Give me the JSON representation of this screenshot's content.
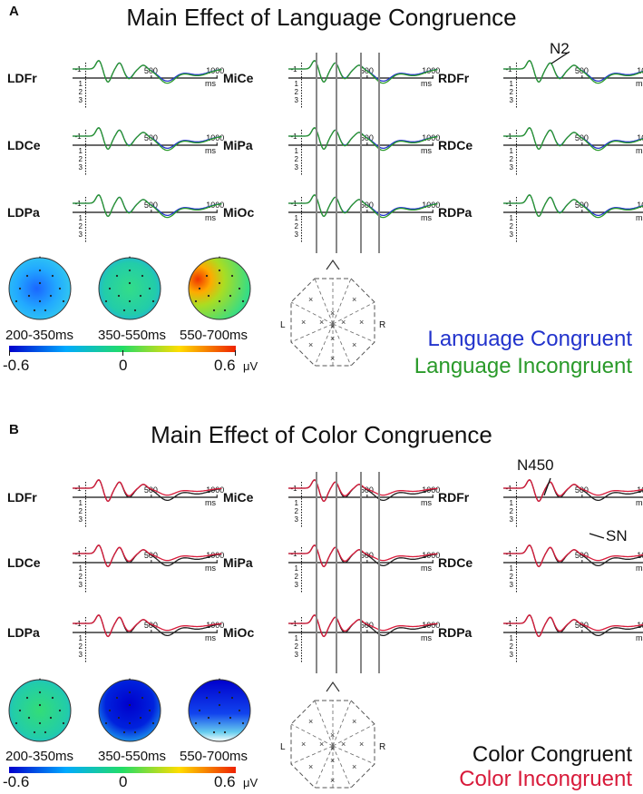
{
  "panels": [
    {
      "letter": "A",
      "title": "Main Effect of Language Congruence",
      "annotation_n2": "N2",
      "electrodes": {
        "left": [
          "LDFr",
          "LDCe",
          "LDPa"
        ],
        "mid": [
          "MiCe",
          "MiPa",
          "MiOc"
        ],
        "right": [
          "RDFr",
          "RDCe",
          "RDPa"
        ]
      },
      "series": [
        {
          "name": "Language Congruent",
          "color": "#2233cc"
        },
        {
          "name": "Language Incongruent",
          "color": "#2a9a2a"
        }
      ],
      "topo_windows": [
        "200-350ms",
        "350-550ms",
        "550-700ms"
      ]
    },
    {
      "letter": "B",
      "title": "Main Effect of Color Congruence",
      "annotation_n450": "N450",
      "annotation_sn": "SN",
      "electrodes": {
        "left": [
          "LDFr",
          "LDCe",
          "LDPa"
        ],
        "mid": [
          "MiCe",
          "MiPa",
          "MiOc"
        ],
        "right": [
          "RDFr",
          "RDCe",
          "RDPa"
        ]
      },
      "series": [
        {
          "name": "Color Congruent",
          "color": "#222222"
        },
        {
          "name": "Color Incongruent",
          "color": "#d81a3a"
        }
      ],
      "topo_windows": [
        "200-350ms",
        "350-550ms",
        "550-700ms"
      ]
    }
  ],
  "axis": {
    "xticks": [
      "500",
      "1000"
    ],
    "xunit": "ms",
    "yticks_neg": "-1",
    "yticks_pos": [
      "1",
      "2",
      "3"
    ],
    "yunit": "μV"
  },
  "colorbar": {
    "min": "-0.6",
    "mid": "0",
    "max": "0.6",
    "unit": "μV",
    "colors": [
      "#0000cc",
      "#00aaff",
      "#22dd66",
      "#ffdd00",
      "#ee2200"
    ]
  },
  "montage_side_labels": [
    "L",
    "R"
  ],
  "chart_data": [
    {
      "type": "line",
      "title": "Main Effect of Language Congruence",
      "x_unit": "ms",
      "xlim": [
        -100,
        1050
      ],
      "ylim": [
        -1.5,
        3.5
      ],
      "y_inverted": true,
      "series": [
        {
          "name": "Language Congruent"
        },
        {
          "name": "Language Incongruent"
        }
      ],
      "topographic_maps": [
        {
          "window": "200-350ms",
          "value_range": [
            -0.6,
            0.6
          ]
        },
        {
          "window": "350-550ms",
          "value_range": [
            -0.6,
            0.6
          ]
        },
        {
          "window": "550-700ms",
          "value_range": [
            -0.6,
            0.6
          ]
        }
      ]
    },
    {
      "type": "line",
      "title": "Main Effect of Color Congruence",
      "x_unit": "ms",
      "xlim": [
        -100,
        1050
      ],
      "ylim": [
        -1.5,
        3.5
      ],
      "y_inverted": true,
      "series": [
        {
          "name": "Color Congruent"
        },
        {
          "name": "Color Incongruent"
        }
      ],
      "topographic_maps": [
        {
          "window": "200-350ms",
          "value_range": [
            -0.6,
            0.6
          ]
        },
        {
          "window": "350-550ms",
          "value_range": [
            -0.6,
            0.6
          ]
        },
        {
          "window": "550-700ms",
          "value_range": [
            -0.6,
            0.6
          ]
        }
      ]
    }
  ]
}
